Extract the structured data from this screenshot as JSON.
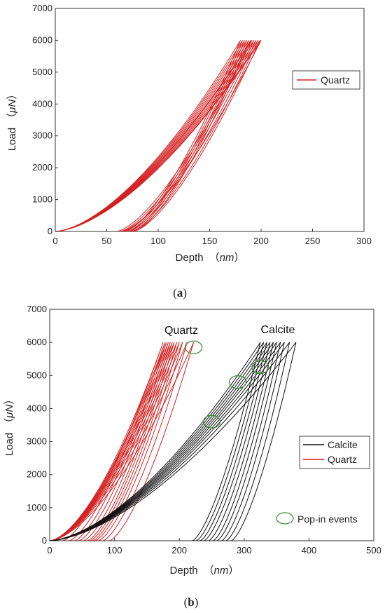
{
  "colors": {
    "quartz": "#d42020",
    "calcite": "#111111",
    "popin": "#2e8b2e"
  },
  "panels": [
    {
      "caption_open": "(",
      "caption_letter": "a",
      "caption_close": ")",
      "xlabel": "Depth",
      "xunit": "nm",
      "ylabel": "Load",
      "yunit": "μN",
      "xticks": [
        "0",
        "50",
        "100",
        "150",
        "200",
        "250",
        "300"
      ],
      "yticks": [
        "0",
        "1000",
        "2000",
        "3000",
        "4000",
        "5000",
        "6000",
        "7000"
      ],
      "legend": [
        "Quartz"
      ]
    },
    {
      "caption_open": "(",
      "caption_letter": "b",
      "caption_close": ")",
      "xlabel": "Depth",
      "xunit": "nm",
      "ylabel": "Load",
      "yunit": "μN",
      "xticks": [
        "0",
        "100",
        "200",
        "300",
        "400",
        "500"
      ],
      "yticks": [
        "0",
        "1000",
        "2000",
        "3000",
        "4000",
        "5000",
        "6000",
        "7000"
      ],
      "legend": [
        "Calcite",
        "Quartz",
        "Pop-in events"
      ],
      "annotations": [
        "Quartz",
        "Calcite"
      ]
    }
  ],
  "chart_data": [
    {
      "type": "line",
      "xlim": [
        0,
        300
      ],
      "ylim": [
        0,
        7000
      ],
      "legend_position": "right",
      "series": [
        {
          "name": "Quartz",
          "curves": [
            {
              "loading_end_depth": 180,
              "unloading_final_depth": 68
            },
            {
              "loading_end_depth": 182,
              "unloading_final_depth": 70
            },
            {
              "loading_end_depth": 184,
              "unloading_final_depth": 72
            },
            {
              "loading_end_depth": 186,
              "unloading_final_depth": 74
            },
            {
              "loading_end_depth": 188,
              "unloading_final_depth": 76
            },
            {
              "loading_end_depth": 190,
              "unloading_final_depth": 60
            },
            {
              "loading_end_depth": 191,
              "unloading_final_depth": 63
            },
            {
              "loading_end_depth": 193,
              "unloading_final_depth": 66
            },
            {
              "loading_end_depth": 195,
              "unloading_final_depth": 70
            },
            {
              "loading_end_depth": 197,
              "unloading_final_depth": 74
            },
            {
              "loading_end_depth": 199,
              "unloading_final_depth": 76
            },
            {
              "loading_end_depth": 200,
              "unloading_final_depth": 64
            }
          ],
          "max_load": 6000
        }
      ]
    },
    {
      "type": "line",
      "xlim": [
        0,
        500
      ],
      "ylim": [
        0,
        7000
      ],
      "legend_position": "right",
      "series": [
        {
          "name": "Quartz",
          "curves": [
            {
              "loading_end_depth": 175,
              "unloading_final_depth": 20
            },
            {
              "loading_end_depth": 178,
              "unloading_final_depth": 30
            },
            {
              "loading_end_depth": 180,
              "unloading_final_depth": 38
            },
            {
              "loading_end_depth": 183,
              "unloading_final_depth": 45
            },
            {
              "loading_end_depth": 186,
              "unloading_final_depth": 52
            },
            {
              "loading_end_depth": 189,
              "unloading_final_depth": 58
            },
            {
              "loading_end_depth": 192,
              "unloading_final_depth": 62
            },
            {
              "loading_end_depth": 196,
              "unloading_final_depth": 66
            },
            {
              "loading_end_depth": 200,
              "unloading_final_depth": 70
            },
            {
              "loading_end_depth": 205,
              "unloading_final_depth": 75
            },
            {
              "loading_end_depth": 212,
              "unloading_final_depth": 82
            },
            {
              "loading_end_depth": 222,
              "unloading_final_depth": 92
            }
          ],
          "max_load": 6000
        },
        {
          "name": "Calcite",
          "curves": [
            {
              "loading_end_depth": 325,
              "unloading_final_depth": 220
            },
            {
              "loading_end_depth": 330,
              "unloading_final_depth": 226
            },
            {
              "loading_end_depth": 335,
              "unloading_final_depth": 232
            },
            {
              "loading_end_depth": 340,
              "unloading_final_depth": 238
            },
            {
              "loading_end_depth": 345,
              "unloading_final_depth": 245
            },
            {
              "loading_end_depth": 350,
              "unloading_final_depth": 252
            },
            {
              "loading_end_depth": 356,
              "unloading_final_depth": 258
            },
            {
              "loading_end_depth": 362,
              "unloading_final_depth": 265
            },
            {
              "loading_end_depth": 370,
              "unloading_final_depth": 272
            },
            {
              "loading_end_depth": 380,
              "unloading_final_depth": 280
            }
          ],
          "max_load": 6000
        }
      ],
      "popin_events": [
        {
          "x": 222,
          "y": 5850
        },
        {
          "x": 250,
          "y": 3600
        },
        {
          "x": 290,
          "y": 4800
        },
        {
          "x": 325,
          "y": 5250
        }
      ]
    }
  ]
}
